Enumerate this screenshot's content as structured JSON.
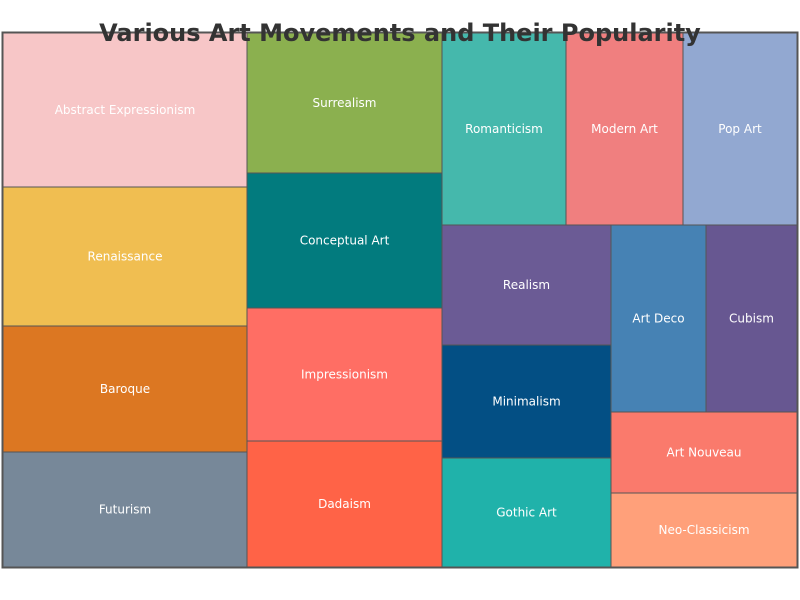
{
  "chart_data": {
    "type": "treemap",
    "title": "Various Art Movements and Their Popularity",
    "items": [
      {
        "name": "Abstract Expressionism",
        "color": "#F7C6C7"
      },
      {
        "name": "Renaissance",
        "color": "#F0BE51"
      },
      {
        "name": "Baroque",
        "color": "#DC7722"
      },
      {
        "name": "Futurism",
        "color": "#778899"
      },
      {
        "name": "Surrealism",
        "color": "#8BB04F"
      },
      {
        "name": "Conceptual Art",
        "color": "#027B7E"
      },
      {
        "name": "Impressionism",
        "color": "#FF6E64"
      },
      {
        "name": "Dadaism",
        "color": "#FF6347"
      },
      {
        "name": "Romanticism",
        "color": "#45B8AC"
      },
      {
        "name": "Modern Art",
        "color": "#F07F7F"
      },
      {
        "name": "Pop Art",
        "color": "#92A8D1"
      },
      {
        "name": "Realism",
        "color": "#6B5B95"
      },
      {
        "name": "Minimalism",
        "color": "#034F84"
      },
      {
        "name": "Gothic Art",
        "color": "#20B2AA"
      },
      {
        "name": "Art Deco",
        "color": "#4682B4"
      },
      {
        "name": "Cubism",
        "color": "#675791"
      },
      {
        "name": "Art Nouveau",
        "color": "#FA7A6C"
      },
      {
        "name": "Neo-Classicism",
        "color": "#FFA07A"
      }
    ],
    "border_color": "#555555"
  }
}
